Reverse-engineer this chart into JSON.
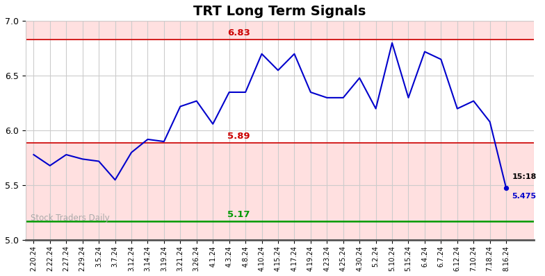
{
  "title": "TRT Long Term Signals",
  "x_labels": [
    "2.20.24",
    "2.22.24",
    "2.27.24",
    "2.29.24",
    "3.5.24",
    "3.7.24",
    "3.12.24",
    "3.14.24",
    "3.19.24",
    "3.21.24",
    "3.26.24",
    "4.1.24",
    "4.3.24",
    "4.8.24",
    "4.10.24",
    "4.15.24",
    "4.17.24",
    "4.19.24",
    "4.23.24",
    "4.25.24",
    "4.30.24",
    "5.2.24",
    "5.10.24",
    "5.15.24",
    "6.4.24",
    "6.7.24",
    "6.12.24",
    "7.10.24",
    "7.18.24",
    "8.16.24"
  ],
  "y_values": [
    5.78,
    5.68,
    5.78,
    5.74,
    5.72,
    5.55,
    5.8,
    5.92,
    5.9,
    6.22,
    6.27,
    6.06,
    6.35,
    6.35,
    6.7,
    6.55,
    6.7,
    6.35,
    6.3,
    6.3,
    6.48,
    6.2,
    6.8,
    6.3,
    6.72,
    6.65,
    6.2,
    6.27,
    6.08,
    5.475
  ],
  "line_color": "#0000cc",
  "hline_upper": 6.83,
  "hline_upper_label": "6.83",
  "hline_upper_color": "#cc0000",
  "hline_mid": 5.89,
  "hline_mid_label": "5.89",
  "hline_mid_color": "#cc0000",
  "hline_lower": 5.17,
  "hline_lower_label": "5.17",
  "hline_lower_color": "#009900",
  "hline_fill_alpha": 0.12,
  "hline_fill_color": "#ff0000",
  "last_label_time": "15:18",
  "last_label_price": "5.475",
  "last_label_color": "#0000cc",
  "watermark": "Stock Traders Daily",
  "watermark_color": "#aaaaaa",
  "ylim": [
    5.0,
    7.0
  ],
  "bg_color": "#ffffff",
  "grid_color": "#cccccc",
  "bottom_bar_color": "#555555",
  "title_fontsize": 14
}
